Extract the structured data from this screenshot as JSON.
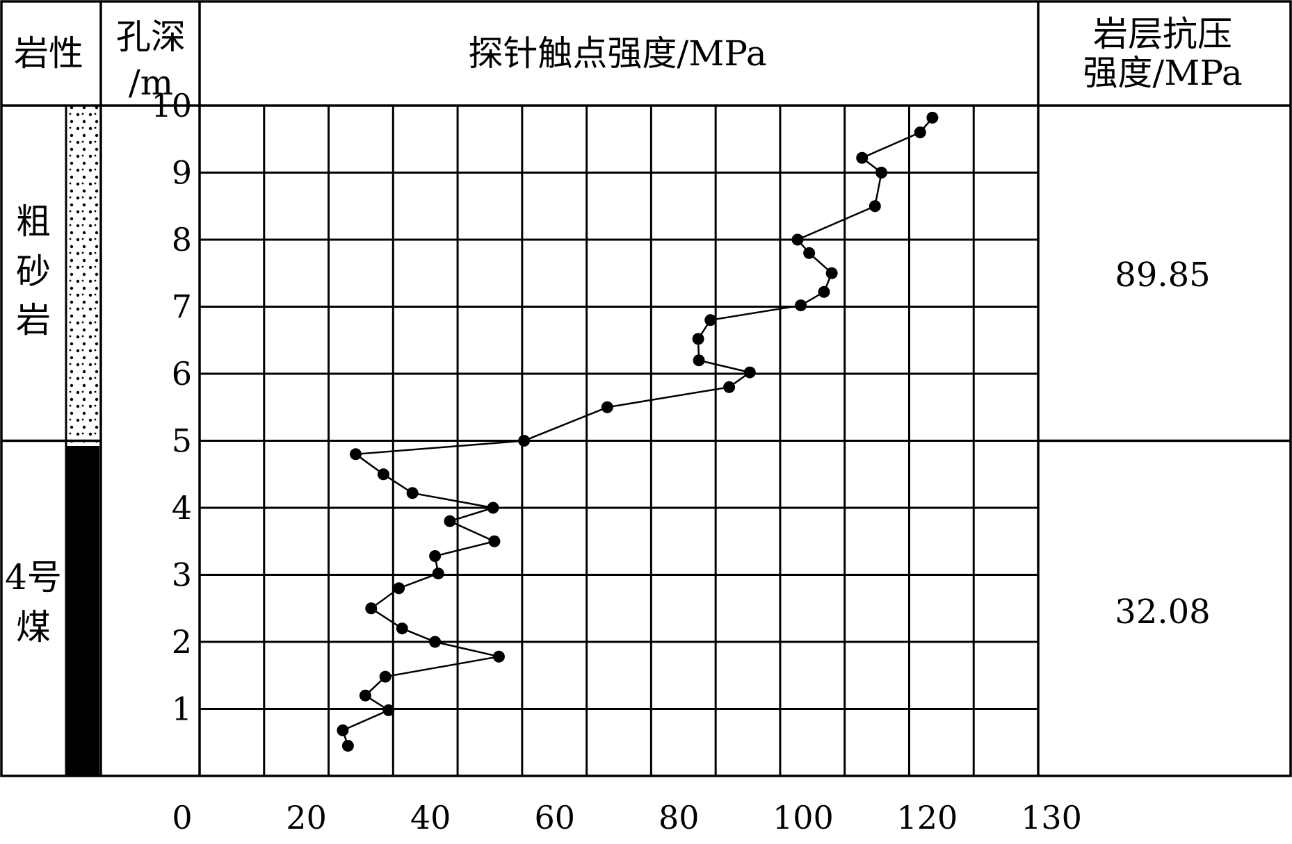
{
  "header": {
    "lithology_label": "岩性",
    "depth_label_line1": "孔深",
    "depth_label_line2": "/m",
    "probe_label": "探针触点强度/MPa",
    "strength_label_line1": "岩层抗压",
    "strength_label_line2": "强度/MPa"
  },
  "layers": [
    {
      "name_lines": [
        "粗",
        "砂",
        "岩"
      ],
      "top_depth": 10,
      "bottom_depth": 5,
      "strength": "89.85",
      "pattern": "dotted"
    },
    {
      "name_lines": [
        "4号",
        "煤"
      ],
      "top_depth": 5,
      "bottom_depth": 0,
      "strength": "32.08",
      "pattern": "solid"
    }
  ],
  "colors": {
    "line": "#000000",
    "coal": "#000000",
    "background": "#ffffff"
  },
  "chart_data": {
    "type": "line",
    "xlabel": "探针触点强度/MPa",
    "ylabel": "孔深/m",
    "xlim": [
      0,
      130
    ],
    "ylim": [
      0,
      10
    ],
    "x_ticks": [
      0,
      20,
      40,
      60,
      80,
      100,
      120,
      130
    ],
    "y_ticks": [
      1,
      2,
      3,
      4,
      5,
      6,
      7,
      8,
      9,
      10
    ],
    "grid": true,
    "series": [
      {
        "points": [
          {
            "x": 23.0,
            "y": 0.45
          },
          {
            "x": 22.2,
            "y": 0.68
          },
          {
            "x": 29.3,
            "y": 0.98
          },
          {
            "x": 25.7,
            "y": 1.2
          },
          {
            "x": 28.8,
            "y": 1.48
          },
          {
            "x": 46.4,
            "y": 1.78
          },
          {
            "x": 36.5,
            "y": 2.0
          },
          {
            "x": 31.4,
            "y": 2.2
          },
          {
            "x": 26.6,
            "y": 2.5
          },
          {
            "x": 30.9,
            "y": 2.8
          },
          {
            "x": 37.0,
            "y": 3.02
          },
          {
            "x": 36.5,
            "y": 3.28
          },
          {
            "x": 45.7,
            "y": 3.5
          },
          {
            "x": 38.8,
            "y": 3.8
          },
          {
            "x": 45.5,
            "y": 4.0
          },
          {
            "x": 33.0,
            "y": 4.22
          },
          {
            "x": 28.5,
            "y": 4.5
          },
          {
            "x": 24.2,
            "y": 4.8
          },
          {
            "x": 50.3,
            "y": 5.0
          },
          {
            "x": 63.2,
            "y": 5.5
          },
          {
            "x": 82.1,
            "y": 5.8
          },
          {
            "x": 85.3,
            "y": 6.02
          },
          {
            "x": 77.4,
            "y": 6.2
          },
          {
            "x": 77.3,
            "y": 6.52
          },
          {
            "x": 79.2,
            "y": 6.8
          },
          {
            "x": 93.2,
            "y": 7.02
          },
          {
            "x": 96.8,
            "y": 7.22
          },
          {
            "x": 98.0,
            "y": 7.5
          },
          {
            "x": 94.5,
            "y": 7.8
          },
          {
            "x": 92.7,
            "y": 8.0
          },
          {
            "x": 104.7,
            "y": 8.5
          },
          {
            "x": 105.7,
            "y": 9.0
          },
          {
            "x": 102.7,
            "y": 9.22
          },
          {
            "x": 111.7,
            "y": 9.6
          },
          {
            "x": 113.6,
            "y": 9.82
          }
        ]
      }
    ]
  }
}
